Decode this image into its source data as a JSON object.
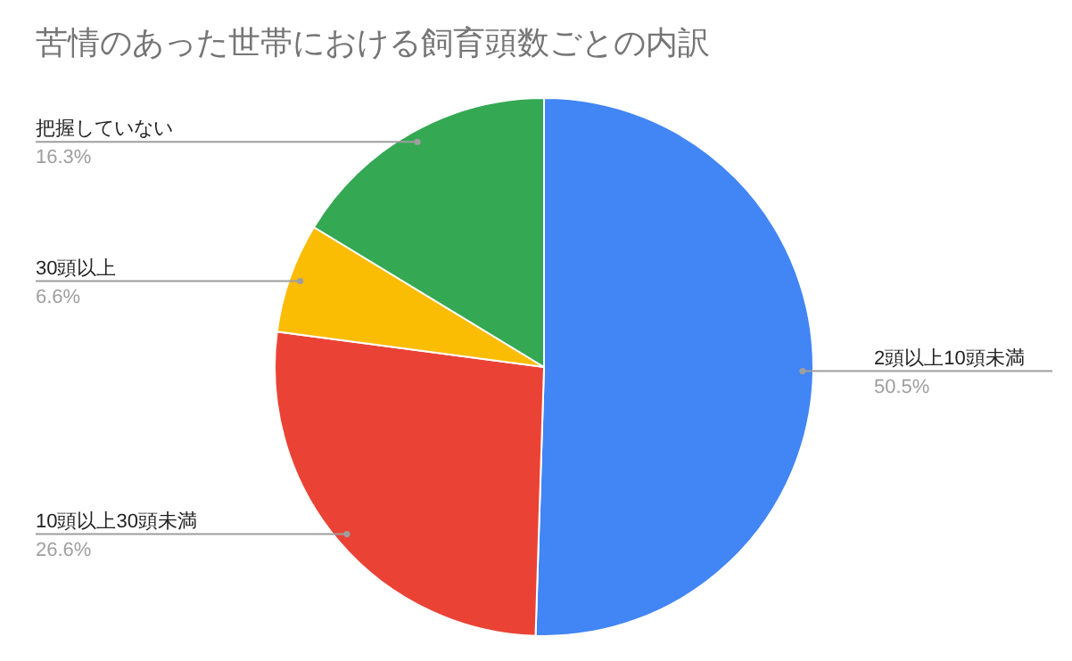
{
  "chart_data": {
    "type": "pie",
    "title": "苦情のあった世帯における飼育頭数ごとの内訳",
    "categories": [
      "2頭以上10頭未満",
      "10頭以上30頭未満",
      "30頭以上",
      "把握していない"
    ],
    "values": [
      50.5,
      26.6,
      6.6,
      16.3
    ],
    "value_labels": [
      "50.5%",
      "26.6%",
      "6.6%",
      "16.3%"
    ],
    "colors": [
      "#4285f4",
      "#ea4335",
      "#fbbc04",
      "#34a853"
    ]
  }
}
